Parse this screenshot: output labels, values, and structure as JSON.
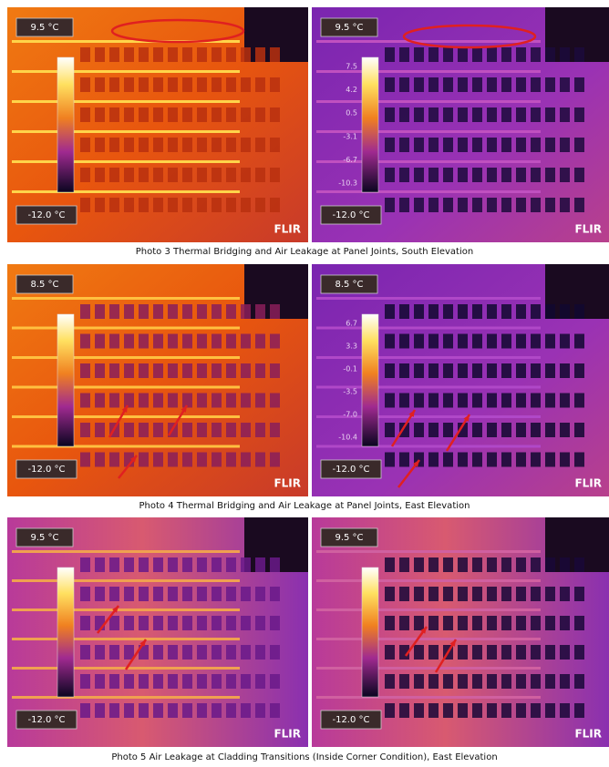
{
  "photos": [
    {
      "caption": "Photo 3 Thermal Bridging and Air Leakage at Panel Joints, South Elevation",
      "images": [
        {
          "max": "9.5 °C",
          "min": "-12.0 °C",
          "logo": "FLIR"
        },
        {
          "max": "9.5 °C",
          "min": "-12.0 °C",
          "logo": "FLIR",
          "scale": [
            "7.5",
            "4.2",
            "0.5",
            "-3.1",
            "-6.7",
            "-10.3"
          ]
        }
      ]
    },
    {
      "caption": "Photo 4 Thermal Bridging and Air Leakage at Panel Joints, East Elevation",
      "images": [
        {
          "max": "8.5 °C",
          "min": "-12.0 °C",
          "logo": "FLIR"
        },
        {
          "max": "8.5 °C",
          "min": "-12.0 °C",
          "logo": "FLIR",
          "scale": [
            "6.7",
            "3.3",
            "-0.1",
            "-3.5",
            "-7.0",
            "-10.4"
          ]
        }
      ]
    },
    {
      "caption": "Photo 5 Air Leakage at Cladding Transitions (Inside Corner Condition), East Elevation",
      "images": [
        {
          "max": "9.5 °C",
          "min": "-12.0 °C",
          "logo": "FLIR"
        },
        {
          "max": "9.5 °C",
          "min": "-12.0 °C",
          "logo": "FLIR"
        }
      ]
    }
  ]
}
